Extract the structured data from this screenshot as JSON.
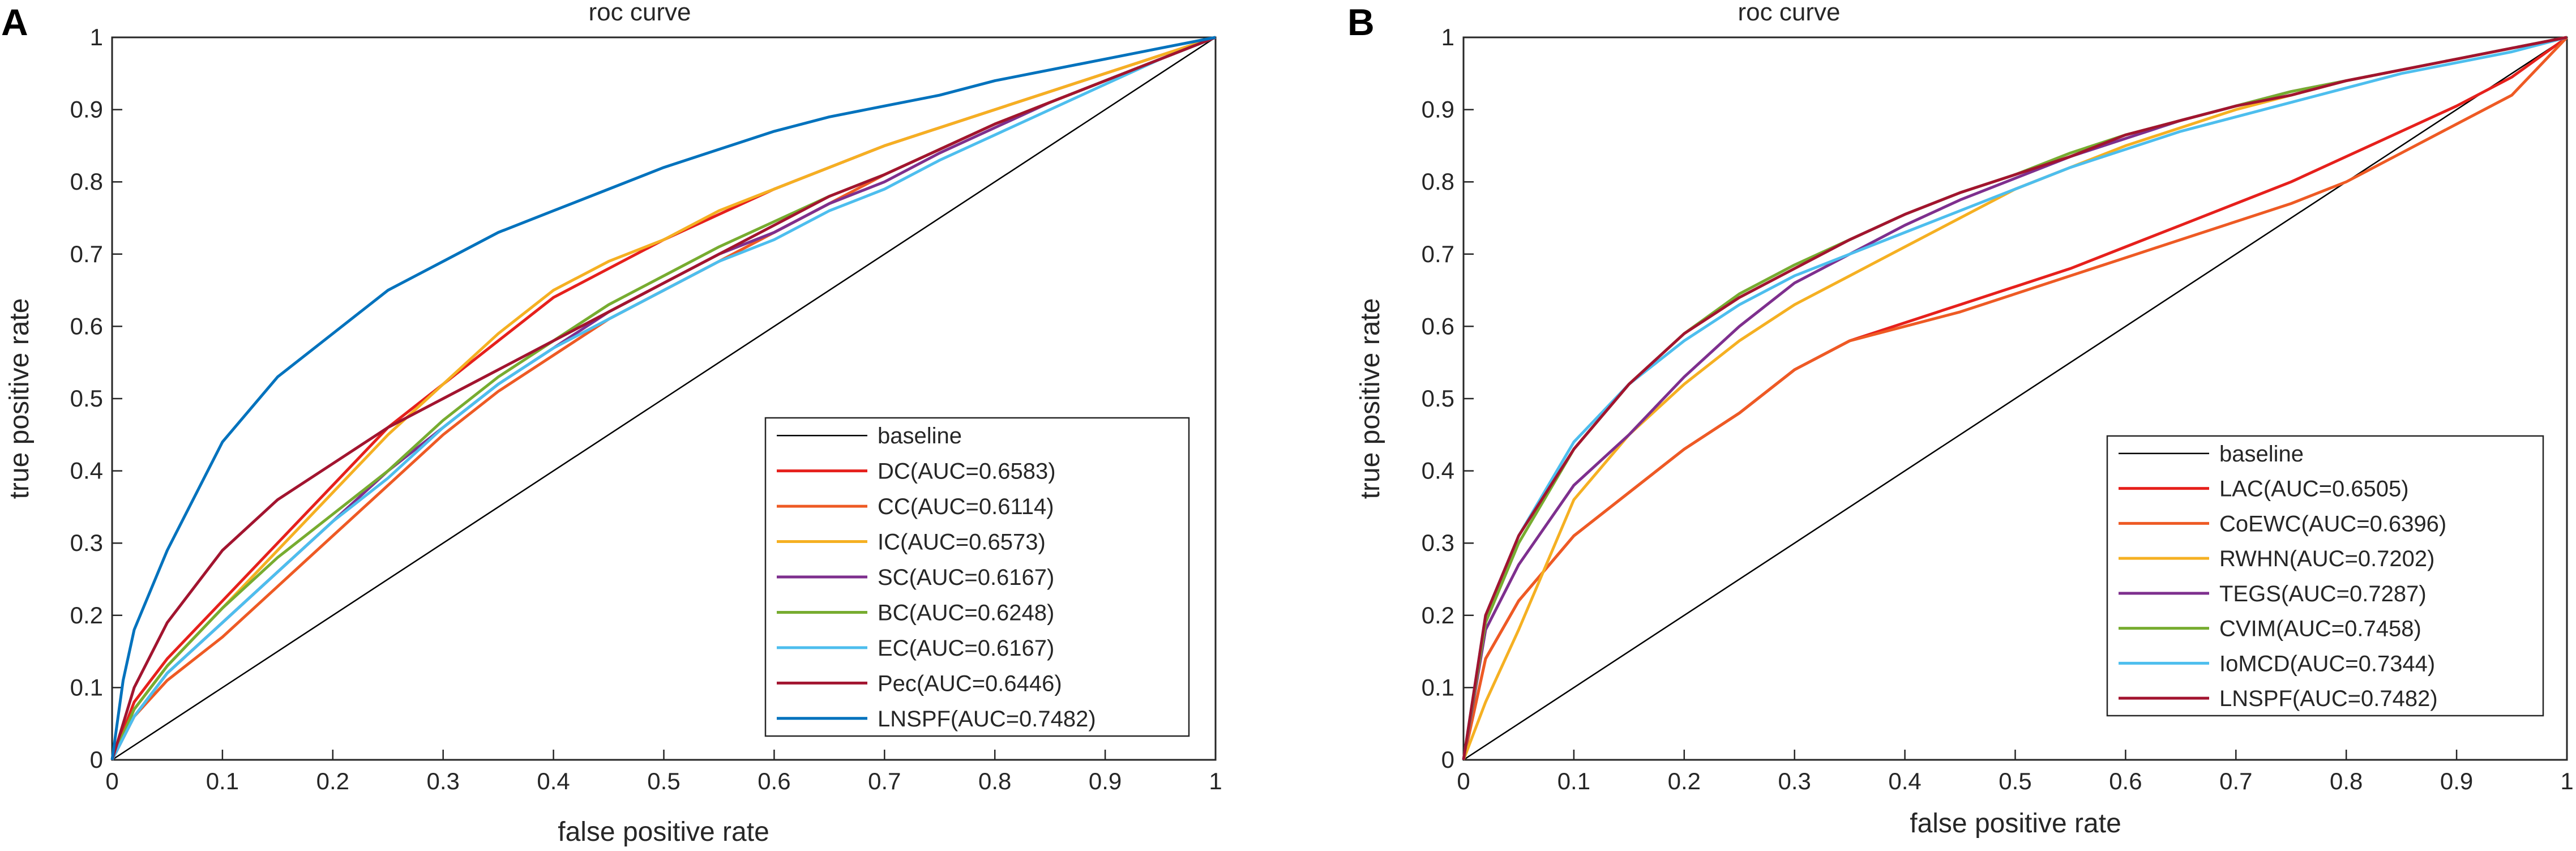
{
  "chart_data": [
    {
      "panel": "A",
      "type": "line",
      "title": "roc curve",
      "xlabel": "false positive rate",
      "ylabel": "true positive rate",
      "xlim": [
        0,
        1
      ],
      "ylim": [
        0,
        1
      ],
      "xticks": [
        "0",
        "0.1",
        "0.2",
        "0.3",
        "0.4",
        "0.5",
        "0.6",
        "0.7",
        "0.8",
        "0.9",
        "1"
      ],
      "yticks": [
        "0",
        "0.1",
        "0.2",
        "0.3",
        "0.4",
        "0.5",
        "0.6",
        "0.7",
        "0.8",
        "0.9",
        "1"
      ],
      "grid": false,
      "legend_position": "bottom-right",
      "series": [
        {
          "name": "baseline",
          "color": "#000000",
          "x": [
            0,
            1
          ],
          "y": [
            0,
            1
          ]
        },
        {
          "name": "DC(AUC=0.6583)",
          "color": "#e6201c",
          "x": [
            0,
            0.02,
            0.05,
            0.1,
            0.15,
            0.2,
            0.25,
            0.3,
            0.35,
            0.4,
            0.45,
            0.5,
            0.55,
            0.6,
            0.65,
            0.7,
            0.75,
            0.8,
            0.85,
            0.9,
            0.95,
            1
          ],
          "y": [
            0,
            0.08,
            0.14,
            0.22,
            0.3,
            0.38,
            0.46,
            0.52,
            0.58,
            0.64,
            0.68,
            0.72,
            0.755,
            0.79,
            0.82,
            0.85,
            0.875,
            0.9,
            0.925,
            0.95,
            0.975,
            1
          ]
        },
        {
          "name": "CC(AUC=0.6114)",
          "color": "#ee5a24",
          "x": [
            0,
            0.02,
            0.05,
            0.1,
            0.15,
            0.2,
            0.25,
            0.3,
            0.35,
            0.4,
            0.45,
            0.5,
            0.55,
            0.6,
            0.65,
            0.7,
            0.75,
            0.8,
            0.85,
            0.9,
            0.95,
            1
          ],
          "y": [
            0,
            0.06,
            0.11,
            0.17,
            0.24,
            0.31,
            0.38,
            0.45,
            0.51,
            0.56,
            0.61,
            0.65,
            0.69,
            0.73,
            0.77,
            0.81,
            0.845,
            0.88,
            0.91,
            0.94,
            0.97,
            1
          ]
        },
        {
          "name": "IC(AUC=0.6573)",
          "color": "#f5b022",
          "x": [
            0,
            0.02,
            0.05,
            0.1,
            0.15,
            0.2,
            0.25,
            0.3,
            0.35,
            0.4,
            0.45,
            0.5,
            0.55,
            0.6,
            0.65,
            0.7,
            0.75,
            0.8,
            0.85,
            0.9,
            0.95,
            1
          ],
          "y": [
            0,
            0.07,
            0.13,
            0.21,
            0.29,
            0.37,
            0.45,
            0.52,
            0.59,
            0.65,
            0.69,
            0.72,
            0.76,
            0.79,
            0.82,
            0.85,
            0.875,
            0.9,
            0.925,
            0.95,
            0.975,
            1
          ]
        },
        {
          "name": "SC(AUC=0.6167)",
          "color": "#7e2f8e",
          "x": [
            0,
            0.02,
            0.05,
            0.1,
            0.15,
            0.2,
            0.25,
            0.3,
            0.35,
            0.4,
            0.45,
            0.5,
            0.55,
            0.6,
            0.65,
            0.7,
            0.75,
            0.8,
            0.85,
            0.9,
            0.95,
            1
          ],
          "y": [
            0,
            0.06,
            0.12,
            0.19,
            0.26,
            0.33,
            0.4,
            0.46,
            0.52,
            0.57,
            0.62,
            0.66,
            0.7,
            0.73,
            0.77,
            0.8,
            0.84,
            0.875,
            0.91,
            0.94,
            0.97,
            1
          ]
        },
        {
          "name": "BC(AUC=0.6248)",
          "color": "#77ac30",
          "x": [
            0,
            0.02,
            0.05,
            0.1,
            0.15,
            0.2,
            0.25,
            0.3,
            0.35,
            0.4,
            0.45,
            0.5,
            0.55,
            0.6,
            0.65,
            0.7,
            0.75,
            0.8,
            0.85,
            0.9,
            0.95,
            1
          ],
          "y": [
            0,
            0.07,
            0.13,
            0.21,
            0.28,
            0.34,
            0.4,
            0.47,
            0.53,
            0.58,
            0.63,
            0.67,
            0.71,
            0.745,
            0.78,
            0.81,
            0.845,
            0.88,
            0.91,
            0.94,
            0.97,
            1
          ]
        },
        {
          "name": "EC(AUC=0.6167)",
          "color": "#4dbeee",
          "x": [
            0,
            0.02,
            0.05,
            0.1,
            0.15,
            0.2,
            0.25,
            0.3,
            0.35,
            0.4,
            0.45,
            0.5,
            0.55,
            0.6,
            0.65,
            0.7,
            0.75,
            0.8,
            0.85,
            0.9,
            0.95,
            1
          ],
          "y": [
            0,
            0.06,
            0.12,
            0.19,
            0.26,
            0.33,
            0.39,
            0.46,
            0.52,
            0.57,
            0.61,
            0.65,
            0.69,
            0.72,
            0.76,
            0.79,
            0.83,
            0.865,
            0.9,
            0.935,
            0.97,
            1
          ]
        },
        {
          "name": "Pec(AUC=0.6446)",
          "color": "#a2142f",
          "x": [
            0,
            0.02,
            0.05,
            0.1,
            0.15,
            0.2,
            0.25,
            0.3,
            0.35,
            0.4,
            0.45,
            0.5,
            0.55,
            0.6,
            0.65,
            0.7,
            0.75,
            0.8,
            0.85,
            0.9,
            0.95,
            1
          ],
          "y": [
            0,
            0.1,
            0.19,
            0.29,
            0.36,
            0.41,
            0.46,
            0.5,
            0.54,
            0.58,
            0.62,
            0.66,
            0.7,
            0.74,
            0.78,
            0.81,
            0.845,
            0.88,
            0.91,
            0.94,
            0.97,
            1
          ]
        },
        {
          "name": "LNSPF(AUC=0.7482)",
          "color": "#0072bd",
          "x": [
            0,
            0.01,
            0.02,
            0.05,
            0.1,
            0.15,
            0.2,
            0.25,
            0.3,
            0.35,
            0.4,
            0.45,
            0.5,
            0.55,
            0.6,
            0.65,
            0.7,
            0.75,
            0.8,
            0.85,
            0.9,
            0.95,
            1
          ],
          "y": [
            0,
            0.11,
            0.18,
            0.29,
            0.44,
            0.53,
            0.59,
            0.65,
            0.69,
            0.73,
            0.76,
            0.79,
            0.82,
            0.845,
            0.87,
            0.89,
            0.905,
            0.92,
            0.94,
            0.955,
            0.97,
            0.985,
            1
          ]
        }
      ]
    },
    {
      "panel": "B",
      "type": "line",
      "title": "roc curve",
      "xlabel": "false positive rate",
      "ylabel": "true positive rate",
      "xlim": [
        0,
        1
      ],
      "ylim": [
        0,
        1
      ],
      "xticks": [
        "0",
        "0.1",
        "0.2",
        "0.3",
        "0.4",
        "0.5",
        "0.6",
        "0.7",
        "0.8",
        "0.9",
        "1"
      ],
      "yticks": [
        "0",
        "0.1",
        "0.2",
        "0.3",
        "0.4",
        "0.5",
        "0.6",
        "0.7",
        "0.8",
        "0.9",
        "1"
      ],
      "grid": false,
      "legend_position": "bottom-right",
      "series": [
        {
          "name": "baseline",
          "color": "#000000",
          "x": [
            0,
            1
          ],
          "y": [
            0,
            1
          ]
        },
        {
          "name": "LAC(AUC=0.6505)",
          "color": "#e6201c",
          "x": [
            0,
            0.02,
            0.05,
            0.1,
            0.15,
            0.2,
            0.25,
            0.3,
            0.35,
            0.4,
            0.45,
            0.5,
            0.55,
            0.6,
            0.65,
            0.7,
            0.75,
            0.8,
            0.85,
            0.9,
            0.95,
            1
          ],
          "y": [
            0,
            0.14,
            0.22,
            0.31,
            0.37,
            0.43,
            0.48,
            0.54,
            0.58,
            0.605,
            0.63,
            0.655,
            0.68,
            0.71,
            0.74,
            0.77,
            0.8,
            0.835,
            0.87,
            0.905,
            0.945,
            1
          ]
        },
        {
          "name": "CoEWC(AUC=0.6396)",
          "color": "#ee5a24",
          "x": [
            0,
            0.02,
            0.05,
            0.1,
            0.15,
            0.2,
            0.25,
            0.3,
            0.35,
            0.4,
            0.45,
            0.5,
            0.55,
            0.6,
            0.65,
            0.7,
            0.75,
            0.8,
            0.85,
            0.9,
            0.95,
            1
          ],
          "y": [
            0,
            0.14,
            0.22,
            0.31,
            0.37,
            0.43,
            0.48,
            0.54,
            0.58,
            0.6,
            0.62,
            0.645,
            0.67,
            0.695,
            0.72,
            0.745,
            0.77,
            0.8,
            0.84,
            0.88,
            0.92,
            1
          ]
        },
        {
          "name": "RWHN(AUC=0.7202)",
          "color": "#f5b022",
          "x": [
            0,
            0.02,
            0.05,
            0.1,
            0.15,
            0.2,
            0.25,
            0.3,
            0.35,
            0.4,
            0.45,
            0.5,
            0.55,
            0.6,
            0.65,
            0.7,
            0.75,
            0.8,
            0.85,
            0.9,
            0.95,
            1
          ],
          "y": [
            0,
            0.08,
            0.18,
            0.36,
            0.45,
            0.52,
            0.58,
            0.63,
            0.67,
            0.71,
            0.75,
            0.79,
            0.82,
            0.85,
            0.875,
            0.9,
            0.92,
            0.94,
            0.955,
            0.97,
            0.985,
            1
          ]
        },
        {
          "name": "TEGS(AUC=0.7287)",
          "color": "#7e2f8e",
          "x": [
            0,
            0.02,
            0.05,
            0.1,
            0.15,
            0.2,
            0.25,
            0.3,
            0.35,
            0.4,
            0.45,
            0.5,
            0.55,
            0.6,
            0.65,
            0.7,
            0.75,
            0.8,
            0.85,
            0.9,
            0.95,
            1
          ],
          "y": [
            0,
            0.18,
            0.27,
            0.38,
            0.45,
            0.53,
            0.6,
            0.66,
            0.7,
            0.74,
            0.775,
            0.805,
            0.835,
            0.86,
            0.885,
            0.905,
            0.925,
            0.94,
            0.955,
            0.97,
            0.985,
            1
          ]
        },
        {
          "name": "CVIM(AUC=0.7458)",
          "color": "#77ac30",
          "x": [
            0,
            0.02,
            0.05,
            0.1,
            0.15,
            0.2,
            0.25,
            0.3,
            0.35,
            0.4,
            0.45,
            0.5,
            0.55,
            0.6,
            0.65,
            0.7,
            0.75,
            0.8,
            0.85,
            0.9,
            0.95,
            1
          ],
          "y": [
            0,
            0.19,
            0.3,
            0.43,
            0.52,
            0.59,
            0.645,
            0.685,
            0.72,
            0.755,
            0.785,
            0.81,
            0.84,
            0.865,
            0.885,
            0.905,
            0.925,
            0.94,
            0.955,
            0.97,
            0.985,
            1
          ]
        },
        {
          "name": "IoMCD(AUC=0.7344)",
          "color": "#4dbeee",
          "x": [
            0,
            0.02,
            0.05,
            0.1,
            0.15,
            0.2,
            0.25,
            0.3,
            0.35,
            0.4,
            0.45,
            0.5,
            0.55,
            0.6,
            0.65,
            0.7,
            0.75,
            0.8,
            0.85,
            0.9,
            0.95,
            1
          ],
          "y": [
            0,
            0.2,
            0.31,
            0.44,
            0.52,
            0.58,
            0.63,
            0.67,
            0.7,
            0.73,
            0.76,
            0.79,
            0.82,
            0.845,
            0.87,
            0.89,
            0.91,
            0.93,
            0.95,
            0.965,
            0.98,
            1
          ]
        },
        {
          "name": "LNSPF(AUC=0.7482)",
          "color": "#a2142f",
          "x": [
            0,
            0.02,
            0.05,
            0.1,
            0.15,
            0.2,
            0.25,
            0.3,
            0.35,
            0.4,
            0.45,
            0.5,
            0.55,
            0.6,
            0.65,
            0.7,
            0.75,
            0.8,
            0.85,
            0.9,
            0.95,
            1
          ],
          "y": [
            0,
            0.2,
            0.31,
            0.43,
            0.52,
            0.59,
            0.64,
            0.68,
            0.72,
            0.755,
            0.785,
            0.81,
            0.835,
            0.865,
            0.885,
            0.905,
            0.92,
            0.94,
            0.955,
            0.97,
            0.985,
            1
          ]
        }
      ]
    }
  ]
}
